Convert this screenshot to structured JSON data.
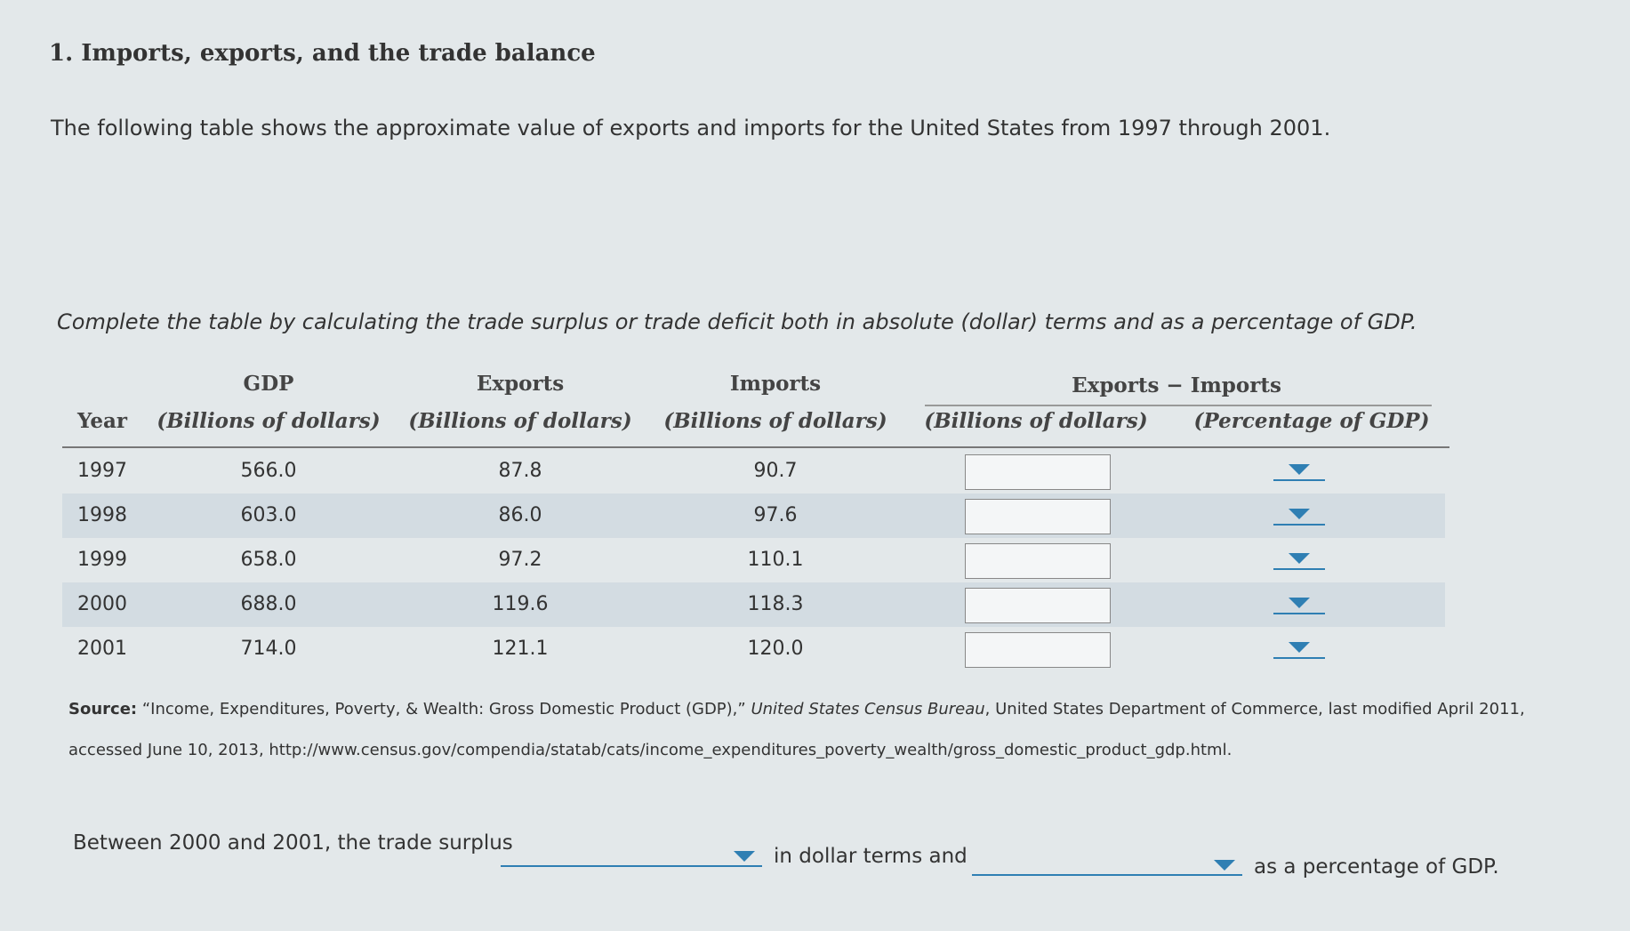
{
  "question": {
    "title": "1. Imports, exports, and the trade balance",
    "intro": "The following table shows the approximate value of exports and imports for the United States from 1997 through 2001.",
    "instruction": "Complete the table by calculating the trade surplus or trade deficit both in absolute (dollar) terms and as a percentage of GDP.",
    "table": {
      "group_header": "Exports − Imports",
      "top_headers": [
        "GDP",
        "Exports",
        "Imports"
      ],
      "headers": [
        "Year",
        "(Billions of dollars)",
        "(Billions of dollars)",
        "(Billions of dollars)",
        "(Billions of dollars)",
        "(Percentage of GDP)"
      ],
      "rows": [
        [
          "1997",
          "566.0",
          "87.8",
          "90.7"
        ],
        [
          "1998",
          "603.0",
          "86.0",
          "97.6"
        ],
        [
          "1999",
          "658.0",
          "97.2",
          "110.1"
        ],
        [
          "2000",
          "688.0",
          "119.6",
          "118.3"
        ],
        [
          "2001",
          "714.0",
          "121.1",
          "120.0"
        ]
      ]
    },
    "source": {
      "label": "Source:",
      "text_before": " “Income, Expenditures, Poverty, & Wealth: Gross Domestic Product (GDP),” ",
      "publisher": "United States Census Bureau",
      "text_after": ", United States Department of Commerce, last modified April 2011, accessed June 10, 2013, http://www.census.gov/compendia/statab/cats/income_expenditures_poverty_wealth/gross_domestic_product_gdp.html."
    },
    "sentence": [
      "Between 2000 and 2001, the trade surplus",
      "in dollar terms and",
      "as a percentage of GDP."
    ]
  }
}
